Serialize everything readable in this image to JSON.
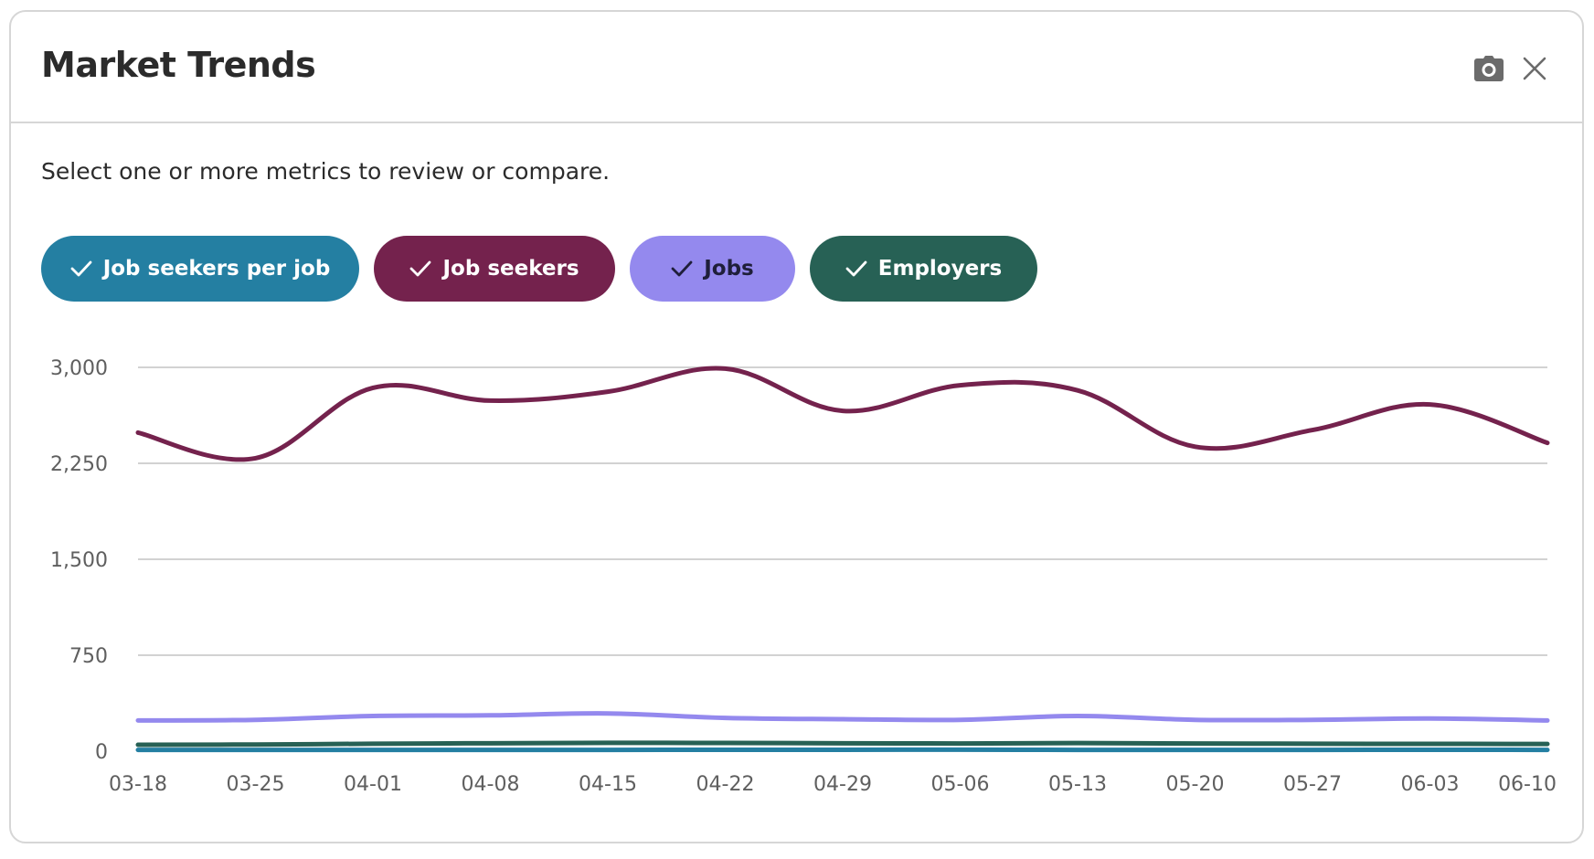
{
  "dialog": {
    "title": "Market Trends",
    "description": "Select one or more metrics to review or compare.",
    "icons": {
      "screenshot": "camera-icon",
      "close": "close-icon"
    }
  },
  "metrics": [
    {
      "label": "Job seekers per job",
      "selected": true,
      "color": "#247fa2",
      "text_color": "#ffffff",
      "icon": "check-icon"
    },
    {
      "label": "Job seekers",
      "selected": true,
      "color": "#74224d",
      "text_color": "#ffffff",
      "icon": "check-icon"
    },
    {
      "label": "Jobs",
      "selected": true,
      "color": "#9489ee",
      "text_color": "#1f1f3a",
      "icon": "check-icon"
    },
    {
      "label": "Employers",
      "selected": true,
      "color": "#276155",
      "text_color": "#ffffff",
      "icon": "check-icon"
    }
  ],
  "chart_data": {
    "type": "line",
    "title": "",
    "xlabel": "",
    "ylabel": "",
    "ylim": [
      0,
      3000
    ],
    "y_ticks": [
      0,
      750,
      1500,
      2250,
      3000
    ],
    "y_tick_labels": [
      "0",
      "750",
      "1,500",
      "2,250",
      "3,000"
    ],
    "grid": true,
    "categories": [
      "03-18",
      "03-25",
      "04-01",
      "04-08",
      "04-15",
      "04-22",
      "04-29",
      "05-06",
      "05-13",
      "05-20",
      "05-27",
      "06-03",
      "06-10"
    ],
    "series": [
      {
        "name": "Job seekers",
        "color": "#74224d",
        "values": [
          2490,
          2290,
          2840,
          2740,
          2810,
          2990,
          2660,
          2860,
          2820,
          2380,
          2510,
          2710,
          2410
        ]
      },
      {
        "name": "Jobs",
        "color": "#9489ee",
        "values": [
          240,
          245,
          275,
          280,
          295,
          260,
          250,
          245,
          275,
          245,
          245,
          255,
          240
        ]
      },
      {
        "name": "Employers",
        "color": "#276155",
        "values": [
          50,
          52,
          58,
          62,
          65,
          64,
          62,
          60,
          63,
          60,
          58,
          57,
          56
        ]
      },
      {
        "name": "Job seekers per job",
        "color": "#247fa2",
        "values": [
          10,
          10,
          10,
          10,
          10,
          11,
          11,
          12,
          10,
          10,
          10,
          11,
          10
        ]
      }
    ]
  }
}
